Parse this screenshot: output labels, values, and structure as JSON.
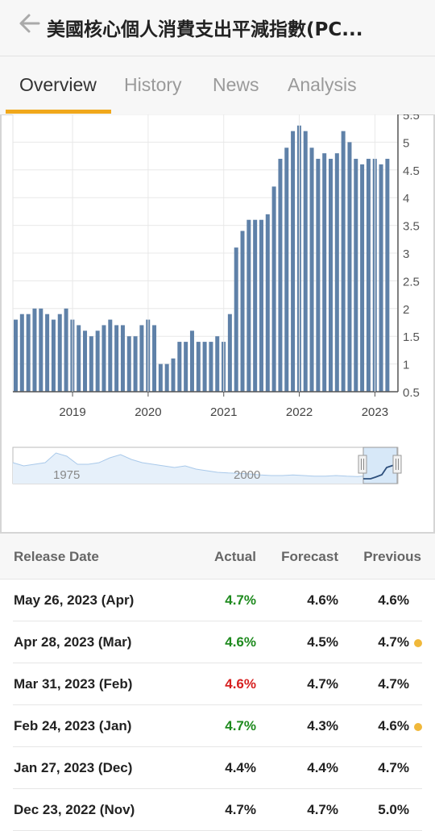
{
  "header": {
    "title": "美國核心個人消費支出平減指數(PC...",
    "back_icon": "back-arrow-icon"
  },
  "tabs": [
    {
      "label": "Overview",
      "active": true
    },
    {
      "label": "History",
      "active": false
    },
    {
      "label": "News",
      "active": false
    },
    {
      "label": "Analysis",
      "active": false
    }
  ],
  "colors": {
    "accent": "#f0a81c",
    "bar": "#5f81a8",
    "positive": "#1e8a1e",
    "negative": "#d62020",
    "revised_dot": "#f0b83a"
  },
  "chart_data": {
    "type": "bar",
    "ylim": [
      0.5,
      5.5
    ],
    "y_ticks": [
      "0.5",
      "1",
      "1.5",
      "2",
      "2.5",
      "3",
      "3.5",
      "4",
      "4.5",
      "5",
      "5.5"
    ],
    "x_ticks": [
      "2019",
      "2020",
      "2021",
      "2022",
      "2023"
    ],
    "values": [
      1.8,
      1.9,
      1.9,
      2.0,
      2.0,
      1.9,
      1.8,
      1.9,
      2.0,
      1.8,
      1.7,
      1.6,
      1.5,
      1.6,
      1.7,
      1.8,
      1.7,
      1.7,
      1.5,
      1.5,
      1.7,
      1.8,
      1.7,
      1.0,
      1.0,
      1.1,
      1.4,
      1.4,
      1.6,
      1.4,
      1.4,
      1.4,
      1.5,
      1.4,
      1.9,
      3.1,
      3.4,
      3.6,
      3.6,
      3.6,
      3.7,
      4.2,
      4.7,
      4.9,
      5.2,
      5.3,
      5.2,
      4.9,
      4.7,
      4.8,
      4.7,
      4.8,
      5.2,
      5.0,
      4.7,
      4.6,
      4.7,
      4.7,
      4.6,
      4.7
    ],
    "navigator": {
      "labels": [
        "1975",
        "2000"
      ]
    }
  },
  "table": {
    "headers": {
      "date": "Release Date",
      "actual": "Actual",
      "forecast": "Forecast",
      "previous": "Previous"
    },
    "rows": [
      {
        "date": "May 26, 2023 (Apr)",
        "actual": "4.7%",
        "actual_status": "positive",
        "forecast": "4.6%",
        "previous": "4.6%",
        "revised": false
      },
      {
        "date": "Apr 28, 2023 (Mar)",
        "actual": "4.6%",
        "actual_status": "positive",
        "forecast": "4.5%",
        "previous": "4.7%",
        "revised": true
      },
      {
        "date": "Mar 31, 2023 (Feb)",
        "actual": "4.6%",
        "actual_status": "negative",
        "forecast": "4.7%",
        "previous": "4.7%",
        "revised": false
      },
      {
        "date": "Feb 24, 2023 (Jan)",
        "actual": "4.7%",
        "actual_status": "positive",
        "forecast": "4.3%",
        "previous": "4.6%",
        "revised": true
      },
      {
        "date": "Jan 27, 2023 (Dec)",
        "actual": "4.4%",
        "actual_status": "neutral",
        "forecast": "4.4%",
        "previous": "4.7%",
        "revised": false
      },
      {
        "date": "Dec 23, 2022 (Nov)",
        "actual": "4.7%",
        "actual_status": "neutral",
        "forecast": "4.7%",
        "previous": "5.0%",
        "revised": false
      }
    ]
  }
}
